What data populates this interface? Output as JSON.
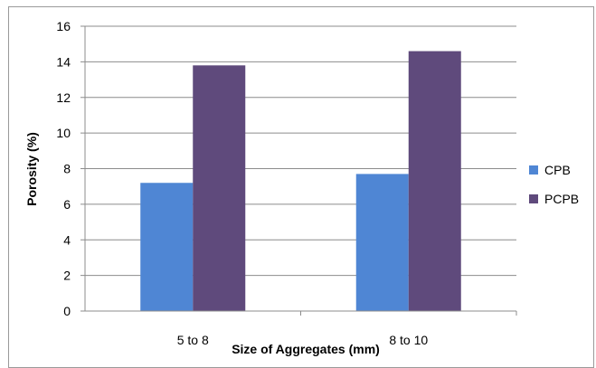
{
  "chart_data": {
    "type": "bar",
    "title": "",
    "xlabel": "Size of Aggregates (mm)",
    "ylabel": "Porosity (%)",
    "categories": [
      "5 to 8",
      "8 to 10"
    ],
    "series": [
      {
        "name": "CPB",
        "values": [
          7.2,
          7.7
        ],
        "color": "#4f86d4"
      },
      {
        "name": "PCPB",
        "values": [
          13.8,
          14.6
        ],
        "color": "#5f4a7c"
      }
    ],
    "ylim": [
      0,
      16
    ],
    "yticks": [
      "0",
      "2",
      "4",
      "6",
      "8",
      "10",
      "12",
      "14",
      "16"
    ],
    "grid": true,
    "legend_position": "right"
  }
}
